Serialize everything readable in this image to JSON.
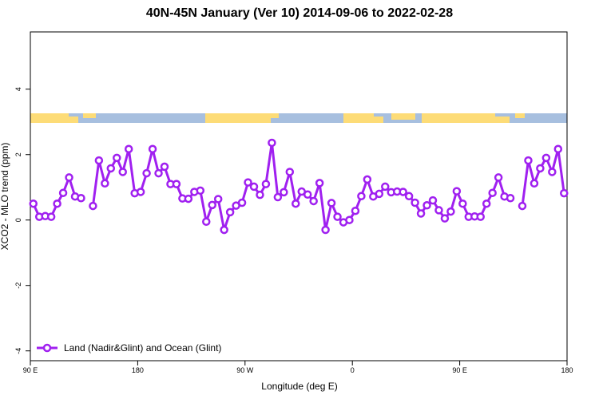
{
  "chart_data": {
    "type": "line",
    "title": "40N-45N January (Ver 10)   2014-09-06 to 2022-02-28",
    "x_label": "Longitude (deg E)",
    "y_label": "XCO2 - MLO trend (ppm)",
    "xlim": [
      90,
      540
    ],
    "ylim": [
      -4.3,
      5.75
    ],
    "xticks": [
      {
        "value": 90,
        "label": "90 E"
      },
      180,
      {
        "value": 270,
        "label": "90 W"
      },
      {
        "value": 360,
        "label": "0"
      },
      {
        "value": 450,
        "label": "90 E"
      },
      {
        "value": 540,
        "label": "180"
      }
    ],
    "yticks": [
      -4,
      -2,
      0,
      2,
      4
    ],
    "legend_position": "bottom-left",
    "x": [
      92.5,
      97.5,
      102.5,
      107.5,
      112.5,
      117.5,
      122.5,
      127.5,
      132.5,
      137.5,
      142.5,
      147.5,
      152.5,
      157.5,
      162.5,
      167.5,
      172.5,
      177.5,
      182.5,
      187.5,
      192.5,
      197.5,
      202.5,
      207.5,
      212.5,
      217.5,
      222.5,
      227.5,
      232.5,
      237.5,
      242.5,
      247.5,
      252.5,
      257.5,
      262.5,
      267.5,
      272.5,
      277.5,
      282.5,
      287.5,
      292.5,
      297.5,
      302.5,
      307.5,
      312.5,
      317.5,
      322.5,
      327.5,
      332.5,
      337.5,
      342.5,
      347.5,
      352.5,
      357.5,
      362.5,
      367.5,
      372.5,
      377.5,
      382.5,
      387.5,
      392.5,
      397.5,
      402.5,
      407.5,
      412.5,
      417.5,
      422.5,
      427.5,
      432.5,
      437.5,
      442.5,
      447.5,
      452.5,
      457.5,
      462.5,
      467.5,
      472.5,
      477.5,
      482.5,
      487.5,
      492.5,
      497.5,
      502.5,
      507.5,
      512.5,
      517.5,
      522.5,
      527.5,
      532.5,
      537.5
    ],
    "series": [
      {
        "name": "Land (Nadir&Glint) and Ocean (Glint)",
        "color": "#a020f0",
        "values": [
          0.5,
          0.1,
          0.12,
          0.1,
          0.5,
          0.83,
          1.3,
          0.72,
          0.67,
          null,
          0.43,
          1.82,
          1.12,
          1.58,
          1.9,
          1.47,
          2.17,
          0.82,
          0.86,
          1.43,
          2.17,
          1.43,
          1.63,
          1.1,
          1.1,
          0.66,
          0.65,
          0.86,
          0.9,
          -0.05,
          0.46,
          0.64,
          -0.3,
          0.24,
          0.44,
          0.53,
          1.15,
          1.02,
          0.77,
          1.1,
          2.36,
          0.7,
          0.85,
          1.47,
          0.5,
          0.87,
          0.78,
          0.58,
          1.13,
          -0.3,
          0.52,
          0.1,
          -0.07,
          0.0,
          0.28,
          0.73,
          1.24,
          0.72,
          0.8,
          1.02,
          0.85,
          0.87,
          0.86,
          0.73,
          0.53,
          0.2,
          0.45,
          0.6,
          0.3,
          0.05,
          0.26,
          0.88,
          0.5,
          0.1,
          0.11,
          0.1,
          0.5,
          0.83,
          1.3,
          0.72,
          0.67,
          null,
          0.43,
          1.82,
          1.12,
          1.58,
          1.9,
          1.47,
          2.17,
          0.82
        ]
      }
    ]
  }
}
